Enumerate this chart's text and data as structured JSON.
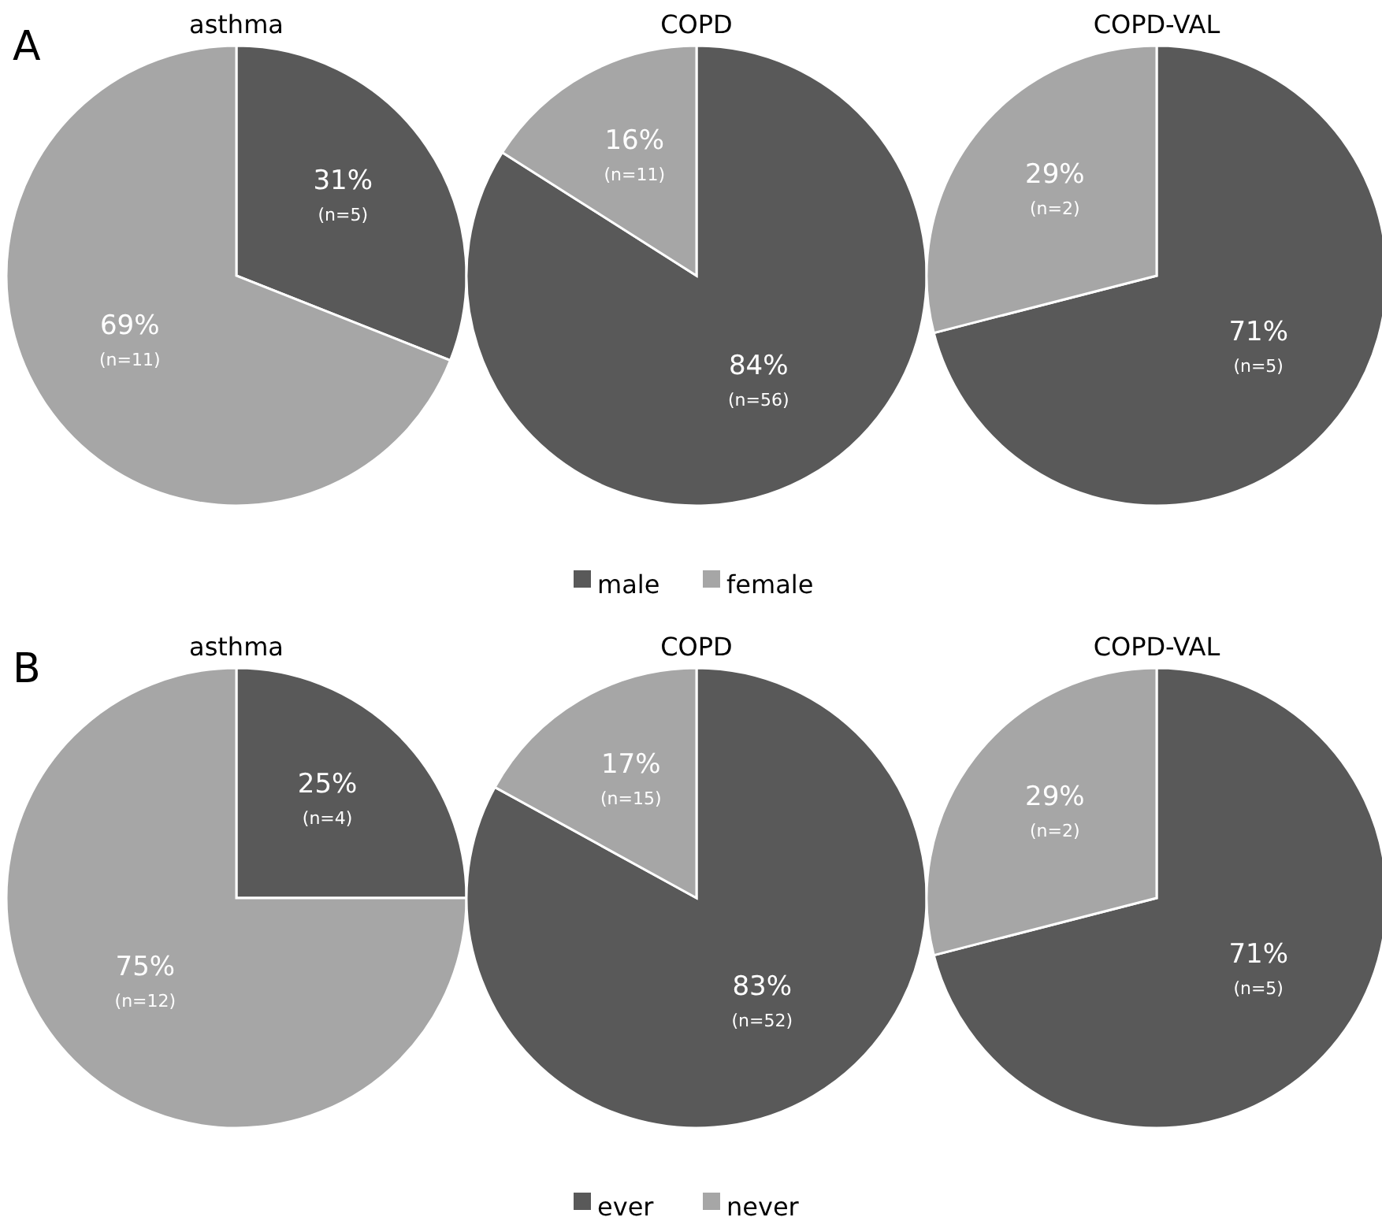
{
  "chart_data": [
    {
      "type": "pie",
      "title": "asthma",
      "annotations": [
        "A"
      ],
      "categories": [
        null,
        null
      ],
      "values": [
        31,
        69
      ],
      "colors": [
        "#595959",
        "#a6a6a6"
      ],
      "value_labels": [
        "31%\n(n=5)",
        "69%\n(n=11)"
      ]
    },
    {
      "type": "pie",
      "title": "COPD",
      "categories": [
        "male",
        "female"
      ],
      "values": [
        84,
        16
      ],
      "colors": [
        "#595959",
        "#a6a6a6"
      ],
      "value_labels": [
        "84%\n(n=56)",
        "16%\n(n=11)"
      ],
      "legend": "bottom"
    },
    {
      "type": "pie",
      "title": "COPD-VAL",
      "categories": [
        null,
        null
      ],
      "values": [
        71,
        29
      ],
      "colors": [
        "#595959",
        "#a6a6a6"
      ],
      "value_labels": [
        "71%\n(n=5)",
        "29%\n(n=2)"
      ]
    },
    {
      "type": "pie",
      "title": "asthma",
      "annotations": [
        "B"
      ],
      "categories": [
        null,
        null
      ],
      "values": [
        25,
        75
      ],
      "colors": [
        "#595959",
        "#a6a6a6"
      ],
      "value_labels": [
        "25%\n(n=4)",
        "75%\n(n=12)"
      ]
    },
    {
      "type": "pie",
      "title": "COPD",
      "categories": [
        "ever",
        "never"
      ],
      "values": [
        83,
        17
      ],
      "colors": [
        "#595959",
        "#a6a6a6"
      ],
      "value_labels": [
        "83%\n(n=52)",
        "17%\n(n=15)"
      ],
      "legend": "bottom"
    },
    {
      "type": "pie",
      "title": "COPD-VAL",
      "categories": [
        null,
        null
      ],
      "values": [
        71,
        29
      ],
      "colors": [
        "#595959",
        "#a6a6a6"
      ],
      "value_labels": [
        "71%\n(n=5)",
        "29%\n(n=2)"
      ]
    }
  ]
}
